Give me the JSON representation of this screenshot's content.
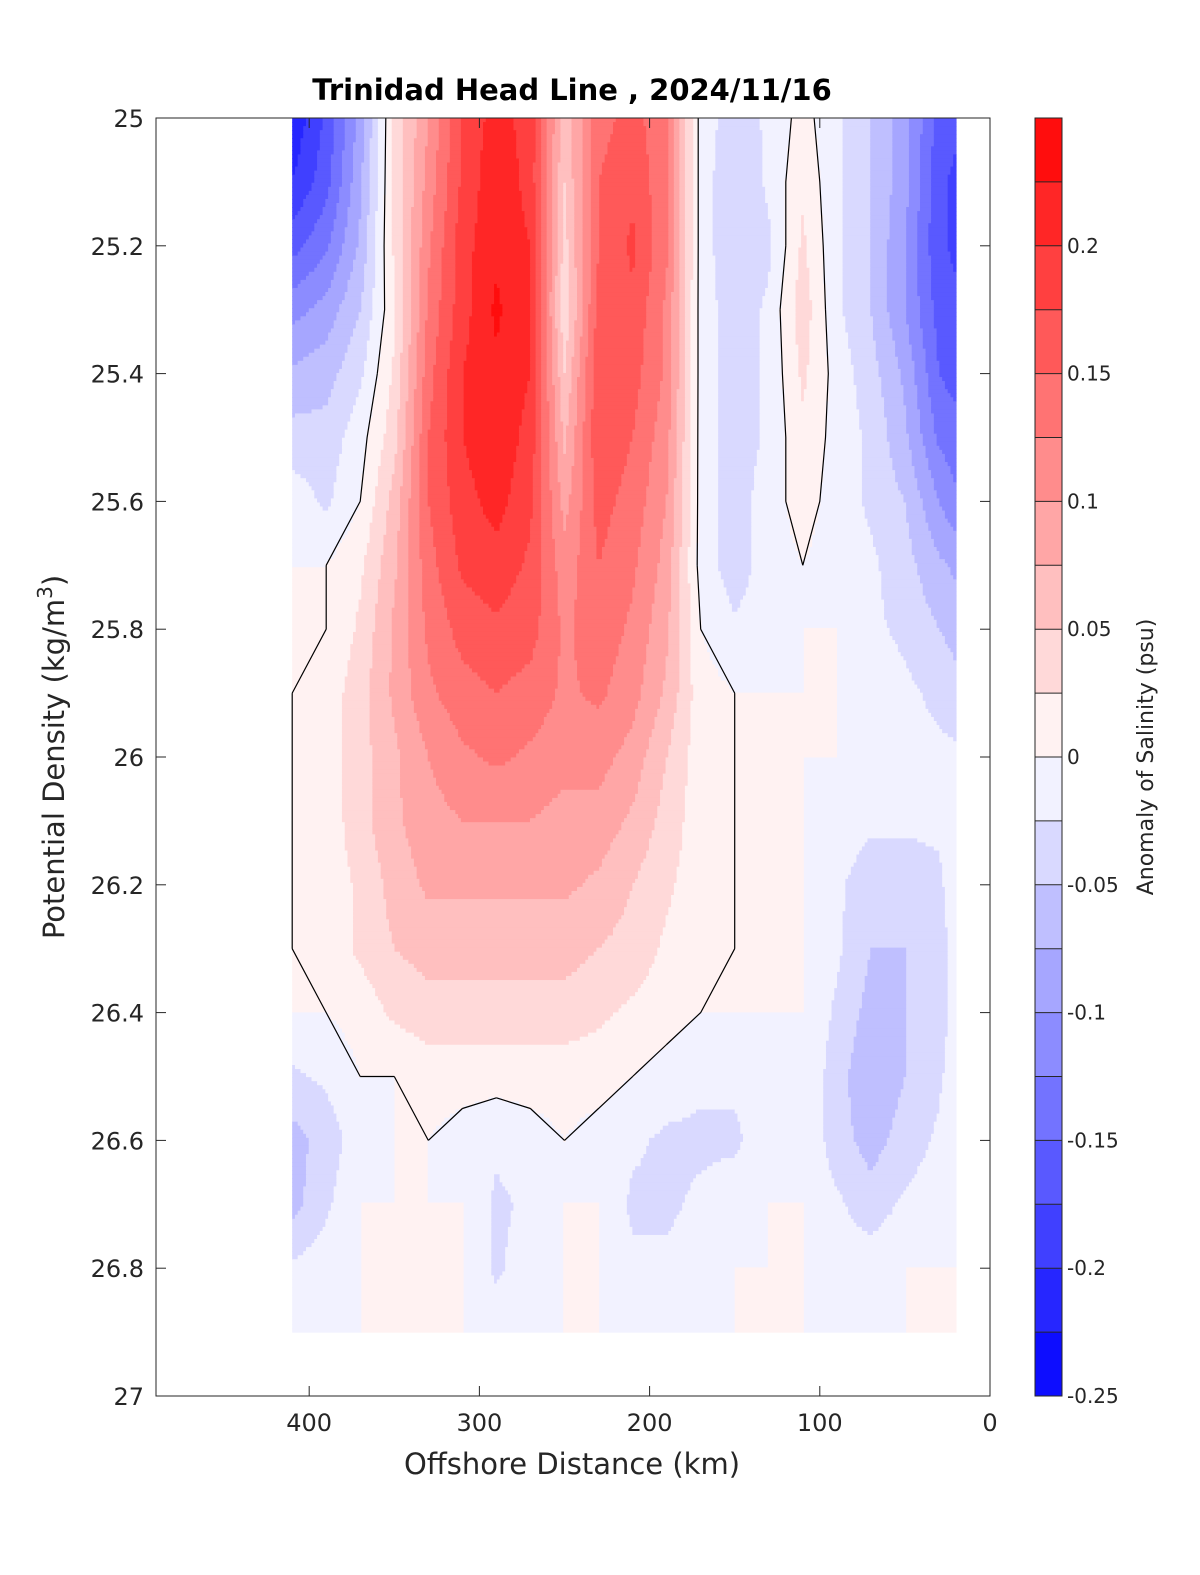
{
  "chart_data": {
    "type": "heatmap",
    "title": "Trinidad Head Line , 2024/11/16",
    "xlabel": "Offshore Distance (km)",
    "ylabel_main": "Potential Density (kg/m",
    "ylabel_sup": "3",
    "ylabel_close": ")",
    "colorbar_label": "Anomaly of Salinity (psu)",
    "xlim": [
      490,
      0
    ],
    "ylim": [
      25,
      27
    ],
    "y_reversed": true,
    "x_reversed": true,
    "x_ticks": [
      400,
      300,
      200,
      100,
      0
    ],
    "y_ticks": [
      "25",
      "25.2",
      "25.4",
      "25.6",
      "25.8",
      "26",
      "26.2",
      "26.4",
      "26.6",
      "26.8",
      "27"
    ],
    "colorbar_ticks": [
      "0.2",
      "0.15",
      "0.1",
      "0.05",
      "0",
      "-0.05",
      "-0.1",
      "-0.15",
      "-0.2",
      "-0.25"
    ],
    "colorbar_levels": [
      -0.25,
      -0.225,
      -0.2,
      -0.175,
      -0.15,
      -0.125,
      -0.1,
      -0.075,
      -0.05,
      -0.025,
      0,
      0.025,
      0.05,
      0.075,
      0.1,
      0.125,
      0.15,
      0.175,
      0.2,
      0.225,
      0.25
    ],
    "colormap": {
      "negative": "#0000ff",
      "zero": "#ffffff",
      "positive": "#ff0000"
    },
    "contour_level": 0,
    "grid": false,
    "x_grid_km": [
      410,
      390,
      370,
      350,
      330,
      310,
      290,
      270,
      250,
      230,
      210,
      190,
      170,
      150,
      130,
      110,
      90,
      70,
      50,
      30,
      20
    ],
    "y_grid_density": [
      25.0,
      25.1,
      25.2,
      25.3,
      25.4,
      25.5,
      25.6,
      25.7,
      25.8,
      25.9,
      26.0,
      26.1,
      26.2,
      26.3,
      26.4,
      26.5,
      26.6,
      26.7,
      26.8,
      26.9
    ],
    "z_salinity_anomaly": [
      [
        -0.22,
        -0.17,
        -0.09,
        0.03,
        0.1,
        0.18,
        0.21,
        0.19,
        0.06,
        0.14,
        0.16,
        0.13,
        -0.01,
        -0.04,
        -0.02,
        0.01,
        -0.02,
        -0.05,
        -0.09,
        -0.16,
        -0.17
      ],
      [
        -0.2,
        -0.16,
        -0.08,
        0.03,
        0.11,
        0.18,
        0.22,
        0.19,
        0.05,
        0.15,
        0.17,
        0.13,
        -0.01,
        -0.05,
        -0.02,
        0.02,
        -0.02,
        -0.05,
        -0.09,
        -0.17,
        -0.18
      ],
      [
        -0.16,
        -0.13,
        -0.07,
        0.03,
        0.12,
        0.19,
        0.22,
        0.2,
        0.04,
        0.15,
        0.18,
        0.13,
        -0.01,
        -0.05,
        -0.03,
        0.03,
        -0.02,
        -0.05,
        -0.1,
        -0.17,
        -0.18
      ],
      [
        -0.11,
        -0.09,
        -0.05,
        0.02,
        0.13,
        0.19,
        0.23,
        0.2,
        0.03,
        0.16,
        0.17,
        0.12,
        -0.01,
        -0.04,
        -0.02,
        0.04,
        -0.02,
        -0.05,
        -0.1,
        -0.16,
        -0.17
      ],
      [
        -0.07,
        -0.06,
        -0.03,
        0.03,
        0.14,
        0.2,
        0.22,
        0.2,
        0.05,
        0.17,
        0.16,
        0.12,
        -0.01,
        -0.04,
        -0.02,
        0.03,
        -0.01,
        -0.04,
        -0.08,
        -0.15,
        -0.16
      ],
      [
        -0.04,
        -0.04,
        -0.01,
        0.04,
        0.15,
        0.2,
        0.22,
        0.19,
        0.07,
        0.17,
        0.15,
        0.11,
        -0.01,
        -0.04,
        -0.02,
        0.02,
        -0.01,
        -0.03,
        -0.07,
        -0.13,
        -0.14
      ],
      [
        -0.01,
        -0.03,
        0.0,
        0.06,
        0.15,
        0.19,
        0.21,
        0.18,
        0.09,
        0.16,
        0.14,
        0.1,
        -0.01,
        -0.04,
        -0.01,
        0.01,
        -0.01,
        -0.03,
        -0.05,
        -0.1,
        -0.12
      ],
      [
        0.0,
        0.0,
        0.02,
        0.07,
        0.14,
        0.18,
        0.19,
        0.17,
        0.11,
        0.15,
        0.13,
        0.09,
        -0.01,
        -0.04,
        -0.01,
        0.0,
        -0.01,
        -0.02,
        -0.04,
        -0.07,
        -0.08
      ],
      [
        0.0,
        0.0,
        0.03,
        0.08,
        0.13,
        0.16,
        0.17,
        0.16,
        0.12,
        0.14,
        0.12,
        0.08,
        0.0,
        -0.02,
        -0.01,
        0.0,
        0.0,
        -0.02,
        -0.03,
        -0.05,
        -0.06
      ],
      [
        0.0,
        0.01,
        0.04,
        0.08,
        0.12,
        0.14,
        0.15,
        0.14,
        0.12,
        0.13,
        0.11,
        0.07,
        0.01,
        0.0,
        0.0,
        0.0,
        0.0,
        -0.01,
        -0.02,
        -0.03,
        -0.04
      ],
      [
        0.0,
        0.01,
        0.04,
        0.07,
        0.1,
        0.12,
        0.13,
        0.12,
        0.11,
        0.11,
        0.09,
        0.05,
        0.01,
        0.0,
        0.0,
        0.0,
        0.0,
        -0.01,
        -0.02,
        -0.02,
        -0.02
      ],
      [
        0.0,
        0.01,
        0.04,
        0.07,
        0.09,
        0.1,
        0.1,
        0.1,
        0.09,
        0.09,
        0.07,
        0.04,
        0.01,
        0.0,
        0.0,
        0.0,
        -0.01,
        -0.02,
        -0.02,
        -0.02,
        -0.01
      ],
      [
        0.0,
        0.01,
        0.03,
        0.06,
        0.08,
        0.08,
        0.08,
        0.08,
        0.08,
        0.07,
        0.05,
        0.03,
        0.01,
        0.0,
        0.0,
        0.0,
        -0.02,
        -0.04,
        -0.04,
        -0.03,
        -0.01
      ],
      [
        0.0,
        0.01,
        0.03,
        0.05,
        0.06,
        0.06,
        0.06,
        0.06,
        0.06,
        0.05,
        0.04,
        0.02,
        0.01,
        0.0,
        0.0,
        0.0,
        -0.02,
        -0.05,
        -0.05,
        -0.04,
        -0.01
      ],
      [
        0.0,
        0.0,
        0.01,
        0.03,
        0.04,
        0.04,
        0.04,
        0.04,
        0.04,
        0.03,
        0.02,
        0.01,
        0.0,
        0.0,
        0.0,
        0.0,
        -0.03,
        -0.06,
        -0.05,
        -0.04,
        -0.01
      ],
      [
        -0.03,
        -0.02,
        0.0,
        0.0,
        0.01,
        0.01,
        0.01,
        0.01,
        0.01,
        0.01,
        0.0,
        -0.01,
        -0.02,
        -0.02,
        -0.01,
        0.0,
        -0.04,
        -0.07,
        -0.05,
        -0.03,
        -0.01
      ],
      [
        -0.06,
        -0.04,
        -0.01,
        0.0,
        0.0,
        -0.01,
        -0.02,
        -0.01,
        0.0,
        -0.01,
        -0.02,
        -0.03,
        -0.03,
        -0.03,
        -0.01,
        0.0,
        -0.04,
        -0.06,
        -0.04,
        -0.02,
        0.0
      ],
      [
        -0.06,
        -0.03,
        0.0,
        0.0,
        0.0,
        0.0,
        -0.03,
        -0.02,
        0.0,
        0.0,
        -0.03,
        -0.03,
        -0.02,
        -0.01,
        0.0,
        0.0,
        -0.02,
        -0.04,
        -0.02,
        -0.01,
        0.0
      ],
      [
        -0.02,
        -0.01,
        0.0,
        0.0,
        0.0,
        0.0,
        -0.03,
        -0.01,
        0.0,
        0.0,
        -0.02,
        -0.02,
        -0.01,
        0.0,
        0.0,
        0.0,
        -0.01,
        -0.01,
        0.0,
        0.0,
        0.0
      ],
      [
        0.0,
        0.0,
        0.0,
        0.0,
        0.0,
        0.0,
        -0.01,
        0.0,
        0.0,
        0.0,
        -0.01,
        -0.01,
        0.0,
        0.0,
        0.0,
        0.0,
        0.0,
        0.0,
        0.0,
        0.0,
        0.0
      ]
    ]
  }
}
